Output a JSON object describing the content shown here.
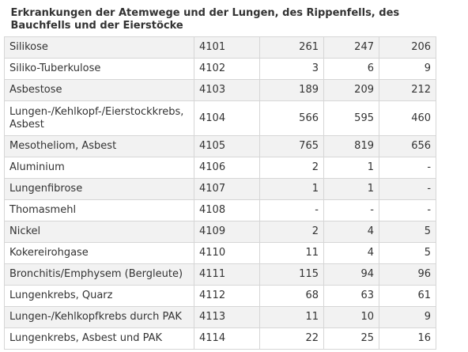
{
  "section": {
    "title": "Erkrankungen der Atemwege und der Lungen, des Rippenfells, des Bauchfells und der Eierstöcke"
  },
  "rows": [
    {
      "name": "Silikose",
      "code": "4101",
      "v1": "261",
      "v2": "247",
      "v3": "206"
    },
    {
      "name": "Siliko-Tuberkulose",
      "code": "4102",
      "v1": "3",
      "v2": "6",
      "v3": "9"
    },
    {
      "name": "Asbestose",
      "code": "4103",
      "v1": "189",
      "v2": "209",
      "v3": "212"
    },
    {
      "name": "Lungen-/Kehlkopf-/Eierstockkrebs, Asbest",
      "code": "4104",
      "v1": "566",
      "v2": "595",
      "v3": "460"
    },
    {
      "name": "Mesotheliom, Asbest",
      "code": "4105",
      "v1": "765",
      "v2": "819",
      "v3": "656"
    },
    {
      "name": "Aluminium",
      "code": "4106",
      "v1": "2",
      "v2": "1",
      "v3": "-"
    },
    {
      "name": "Lungenfibrose",
      "code": "4107",
      "v1": "1",
      "v2": "1",
      "v3": "-"
    },
    {
      "name": "Thomasmehl",
      "code": "4108",
      "v1": "-",
      "v2": "-",
      "v3": "-"
    },
    {
      "name": "Nickel",
      "code": "4109",
      "v1": "2",
      "v2": "4",
      "v3": "5"
    },
    {
      "name": "Kokereirohgase",
      "code": "4110",
      "v1": "11",
      "v2": "4",
      "v3": "5"
    },
    {
      "name": "Bronchitis/Emphysem (Bergleute)",
      "code": "4111",
      "v1": "115",
      "v2": "94",
      "v3": "96"
    },
    {
      "name": "Lungenkrebs, Quarz",
      "code": "4112",
      "v1": "68",
      "v2": "63",
      "v3": "61"
    },
    {
      "name": "Lungen-/Kehlkopfkrebs durch PAK",
      "code": "4113",
      "v1": "11",
      "v2": "10",
      "v3": "9"
    },
    {
      "name": "Lungenkrebs, Asbest und PAK",
      "code": "4114",
      "v1": "22",
      "v2": "25",
      "v3": "16"
    }
  ]
}
